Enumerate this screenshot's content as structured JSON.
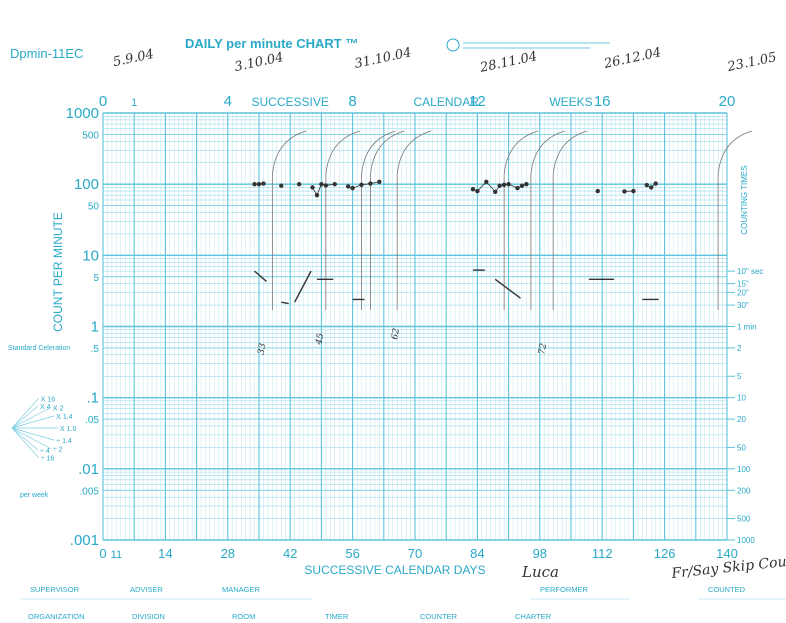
{
  "chart_data": {
    "type": "scatter",
    "form_code": "Dpmin-11EC",
    "title": "DAILY per minute CHART ™",
    "top_scale_label": "SUCCESSIVE CALENDAR WEEKS",
    "top_scale_words": [
      "SUCCESSIVE",
      "CALENDAR",
      "WEEKS"
    ],
    "top_ticks": [
      "0",
      "4",
      "8",
      "12",
      "16",
      "20"
    ],
    "xlabel": "SUCCESSIVE CALENDAR DAYS",
    "ylabel": "COUNT PER MINUTE",
    "right_label": "COUNTING TIMES",
    "y_scale": "log",
    "ylim": [
      0.001,
      1000
    ],
    "xlim": [
      0,
      140
    ],
    "x_ticks": [
      "0",
      "14",
      "28",
      "42",
      "56",
      "70",
      "84",
      "98",
      "112",
      "126",
      "140"
    ],
    "y_ticks": [
      "1000",
      "500",
      "100",
      "50",
      "10",
      "5",
      "1",
      ".5",
      ".1",
      ".05",
      ".01",
      ".005",
      ".001"
    ],
    "right_ticks": [
      "10\" sec",
      "15\"",
      "20\"",
      "30\"",
      "1 min",
      "2",
      "5",
      "10",
      "20",
      "50",
      "100",
      "200",
      "500",
      "1000"
    ],
    "standard_celeration_label": "Standard Celeration",
    "celeration_labels": [
      "X 16",
      "X 4",
      "X 2",
      "X 1.4",
      "X 1.0",
      "÷ 1.4",
      "÷ 2",
      "÷ 4",
      "÷ 16"
    ],
    "celeration_footer": "per week",
    "date_labels": [
      "5.9.04",
      "3.10.04",
      "31.10.04",
      "28.11.04",
      "26.12.04",
      "23.1.05"
    ],
    "performer": "Luca",
    "note": "Fr/Say Skip Coun",
    "footer_row1": [
      "SUPERVISOR",
      "ADVISER",
      "MANAGER",
      "PERFORMER",
      "COUNTED"
    ],
    "footer_row2": [
      "ORGANIZATION",
      "DIVISION",
      "ROOM",
      "TIMER",
      "COUNTER",
      "CHARTER"
    ],
    "phase_labels": [
      "33",
      "45",
      "62",
      "72"
    ],
    "series": [
      {
        "name": "",
        "marker": "dot",
        "points": [
          [
            34,
            100
          ],
          [
            35,
            100
          ],
          [
            36,
            102
          ],
          [
            40,
            95
          ],
          [
            44,
            100
          ],
          [
            47,
            90
          ],
          [
            48,
            70
          ],
          [
            49,
            100
          ],
          [
            50,
            96
          ],
          [
            52,
            100
          ],
          [
            55,
            93
          ],
          [
            56,
            88
          ],
          [
            58,
            98
          ],
          [
            60,
            102
          ],
          [
            62,
            108
          ],
          [
            83,
            85
          ],
          [
            84,
            80
          ],
          [
            86,
            108
          ],
          [
            88,
            78
          ],
          [
            89,
            95
          ],
          [
            90,
            98
          ],
          [
            91,
            100
          ],
          [
            93,
            88
          ],
          [
            94,
            95
          ],
          [
            95,
            100
          ],
          [
            111,
            80
          ],
          [
            117,
            79
          ],
          [
            119,
            80
          ],
          [
            122,
            97
          ],
          [
            123,
            90
          ],
          [
            124,
            102
          ]
        ]
      },
      {
        "name": "",
        "marker": "dash",
        "points": [
          [
            34,
            6
          ],
          [
            36,
            4.3
          ],
          [
            40,
            2.2
          ],
          [
            41,
            2.1
          ],
          [
            43,
            2.2
          ],
          [
            46,
            6
          ],
          [
            48,
            4.6
          ],
          [
            51,
            4.6
          ],
          [
            56,
            2.4
          ],
          [
            58,
            2.4
          ],
          [
            83,
            6.2
          ],
          [
            85,
            6.2
          ],
          [
            88,
            4.6
          ],
          [
            93,
            2.5
          ],
          [
            109,
            4.6
          ],
          [
            114,
            4.6
          ],
          [
            121,
            2.4
          ],
          [
            124,
            2.4
          ]
        ]
      }
    ],
    "colors": {
      "grid": "#5ec3dd",
      "accent": "#29a9c8",
      "ink": "#333333"
    }
  }
}
